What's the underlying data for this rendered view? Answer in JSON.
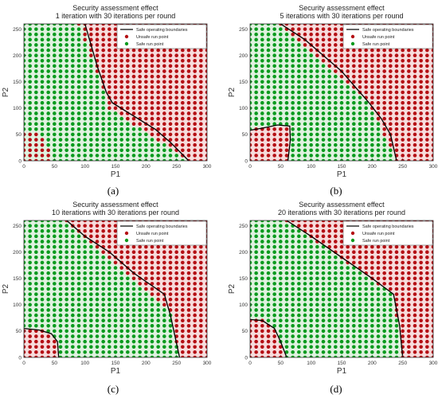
{
  "chart_data": [
    {
      "type": "scatter",
      "caption": "(a)",
      "title": "Security assessment effect",
      "subtitle": "1 iteration with 30 iterations per round",
      "xlabel": "P1",
      "ylabel": "P2",
      "xlim": [
        0,
        300
      ],
      "ylim": [
        0,
        260
      ],
      "xticks": [
        0,
        50,
        100,
        150,
        200,
        250,
        300
      ],
      "yticks": [
        0,
        50,
        100,
        150,
        200,
        250
      ],
      "grid": false,
      "legend_position": "top-right",
      "legend": [
        {
          "label": "Safe operating boundaries",
          "marker": "line",
          "color": "#000000"
        },
        {
          "label": "Unsafe run point",
          "marker": "dot",
          "color": "#b40f14"
        },
        {
          "label": "Safe run point",
          "marker": "dot",
          "color": "#0a9a1e"
        }
      ],
      "point_spacing": [
        10,
        10
      ],
      "unsafe_regions": [
        {
          "kind": "above",
          "polygon": [
            [
              90,
              260
            ],
            [
              140,
              100
            ],
            [
              270,
              0
            ]
          ]
        },
        {
          "kind": "corner",
          "polygon": [
            [
              0,
              60
            ],
            [
              35,
              45
            ],
            [
              50,
              0
            ]
          ]
        }
      ],
      "shaded_regions": [
        {
          "polygon": [
            [
              100,
              260
            ],
            [
              140,
              100
            ],
            [
              270,
              0
            ],
            [
              300,
              0
            ],
            [
              300,
              260
            ]
          ]
        }
      ],
      "boundaries": [
        [
          [
            100,
            260
          ],
          [
            120,
            180
          ],
          [
            135,
            130
          ],
          [
            145,
            110
          ],
          [
            180,
            85
          ],
          [
            215,
            60
          ],
          [
            240,
            35
          ],
          [
            270,
            0
          ]
        ]
      ]
    },
    {
      "type": "scatter",
      "caption": "(b)",
      "title": "Security assessment effect",
      "subtitle": "5 iterations with 30 iterations per round",
      "xlabel": "P1",
      "ylabel": "P2",
      "xlim": [
        0,
        300
      ],
      "ylim": [
        0,
        260
      ],
      "xticks": [
        0,
        50,
        100,
        150,
        200,
        250,
        300
      ],
      "yticks": [
        0,
        50,
        100,
        150,
        200,
        250
      ],
      "grid": false,
      "legend_position": "top-right",
      "legend": [
        {
          "label": "Safe operating boundaries",
          "marker": "line",
          "color": "#000000"
        },
        {
          "label": "Unsafe run point",
          "marker": "dot",
          "color": "#b40f14"
        },
        {
          "label": "Safe run point",
          "marker": "dot",
          "color": "#0a9a1e"
        }
      ],
      "point_spacing": [
        10,
        10
      ],
      "unsafe_regions": [
        {
          "kind": "above",
          "polygon": [
            [
              50,
              260
            ],
            [
              195,
              110
            ],
            [
              240,
              0
            ]
          ]
        },
        {
          "kind": "corner",
          "polygon": [
            [
              0,
              58
            ],
            [
              30,
              65
            ],
            [
              68,
              66
            ],
            [
              65,
              30
            ],
            [
              62,
              0
            ]
          ]
        }
      ],
      "shaded_regions": [
        {
          "polygon": [
            [
              50,
              260
            ],
            [
              195,
              110
            ],
            [
              240,
              0
            ],
            [
              300,
              0
            ],
            [
              300,
              260
            ]
          ]
        },
        {
          "polygon": [
            [
              0,
              0
            ],
            [
              0,
              58
            ],
            [
              30,
              65
            ],
            [
              68,
              66
            ],
            [
              65,
              30
            ],
            [
              62,
              0
            ]
          ]
        }
      ],
      "boundaries": [
        [
          [
            50,
            260
          ],
          [
            90,
            230
          ],
          [
            150,
            170
          ],
          [
            195,
            110
          ],
          [
            215,
            80
          ],
          [
            230,
            50
          ],
          [
            240,
            0
          ]
        ],
        [
          [
            0,
            58
          ],
          [
            20,
            62
          ],
          [
            45,
            68
          ],
          [
            65,
            66
          ],
          [
            66,
            40
          ],
          [
            62,
            0
          ]
        ]
      ]
    },
    {
      "type": "scatter",
      "caption": "(c)",
      "title": "Security assessment effect",
      "subtitle": "10 iterations with 30 iterations per round",
      "xlabel": "P1",
      "ylabel": "P2",
      "xlim": [
        0,
        300
      ],
      "ylim": [
        0,
        260
      ],
      "xticks": [
        0,
        50,
        100,
        150,
        200,
        250,
        300
      ],
      "yticks": [
        0,
        50,
        100,
        150,
        200,
        250
      ],
      "grid": false,
      "legend_position": "top-right",
      "legend": [
        {
          "label": "Safe operating boundaries",
          "marker": "line",
          "color": "#000000"
        },
        {
          "label": "Unsafe run point",
          "marker": "dot",
          "color": "#b40f14"
        },
        {
          "label": "Safe run point",
          "marker": "dot",
          "color": "#0a9a1e"
        }
      ],
      "point_spacing": [
        10,
        10
      ],
      "unsafe_regions": [
        {
          "kind": "above",
          "polygon": [
            [
              70,
              260
            ],
            [
              240,
              90
            ],
            [
              255,
              0
            ]
          ]
        },
        {
          "kind": "corner",
          "polygon": [
            [
              0,
              55
            ],
            [
              40,
              50
            ],
            [
              55,
              30
            ],
            [
              58,
              0
            ]
          ]
        }
      ],
      "shaded_regions": [
        {
          "polygon": [
            [
              70,
              260
            ],
            [
              240,
              90
            ],
            [
              255,
              0
            ],
            [
              300,
              0
            ],
            [
              300,
              260
            ]
          ]
        },
        {
          "polygon": [
            [
              0,
              0
            ],
            [
              0,
              55
            ],
            [
              40,
              50
            ],
            [
              55,
              30
            ],
            [
              58,
              0
            ]
          ]
        }
      ],
      "boundaries": [
        [
          [
            70,
            260
          ],
          [
            100,
            230
          ],
          [
            140,
            200
          ],
          [
            180,
            160
          ],
          [
            230,
            120
          ],
          [
            240,
            80
          ],
          [
            255,
            0
          ]
        ],
        [
          [
            0,
            55
          ],
          [
            25,
            52
          ],
          [
            45,
            45
          ],
          [
            55,
            30
          ],
          [
            57,
            0
          ]
        ]
      ]
    },
    {
      "type": "scatter",
      "caption": "(d)",
      "title": "Security assessment effect",
      "subtitle": "20 iterations with 30 iterations per round",
      "xlabel": "P1",
      "ylabel": "P2",
      "xlim": [
        0,
        300
      ],
      "ylim": [
        0,
        260
      ],
      "xticks": [
        0,
        50,
        100,
        150,
        200,
        250,
        300
      ],
      "yticks": [
        0,
        50,
        100,
        150,
        200,
        250
      ],
      "grid": false,
      "legend_position": "top-right",
      "legend": [
        {
          "label": "Safe operating boundaries",
          "marker": "line",
          "color": "#000000"
        },
        {
          "label": "Unsafe run point",
          "marker": "dot",
          "color": "#b40f14"
        },
        {
          "label": "Safe run point",
          "marker": "dot",
          "color": "#0a9a1e"
        }
      ],
      "point_spacing": [
        10,
        10
      ],
      "unsafe_regions": [
        {
          "kind": "above",
          "polygon": [
            [
              60,
              260
            ],
            [
              235,
              120
            ],
            [
              250,
              0
            ]
          ]
        },
        {
          "kind": "corner",
          "polygon": [
            [
              0,
              72
            ],
            [
              25,
              70
            ],
            [
              45,
              45
            ],
            [
              60,
              0
            ]
          ]
        }
      ],
      "shaded_regions": [
        {
          "polygon": [
            [
              60,
              260
            ],
            [
              235,
              120
            ],
            [
              250,
              0
            ],
            [
              300,
              0
            ],
            [
              300,
              260
            ]
          ]
        },
        {
          "polygon": [
            [
              0,
              0
            ],
            [
              0,
              72
            ],
            [
              25,
              70
            ],
            [
              45,
              45
            ],
            [
              60,
              0
            ]
          ]
        }
      ],
      "boundaries": [
        [
          [
            60,
            260
          ],
          [
            100,
            230
          ],
          [
            150,
            190
          ],
          [
            200,
            150
          ],
          [
            235,
            120
          ],
          [
            245,
            60
          ],
          [
            250,
            0
          ]
        ],
        [
          [
            0,
            72
          ],
          [
            20,
            70
          ],
          [
            40,
            55
          ],
          [
            50,
            30
          ],
          [
            60,
            0
          ]
        ]
      ]
    }
  ],
  "colors": {
    "safe_point": "#0a9a1e",
    "unsafe_point": "#b40f14",
    "safe_fill": "#dff2df",
    "unsafe_fill": "#f7dcdc",
    "boundary": "#000000"
  }
}
